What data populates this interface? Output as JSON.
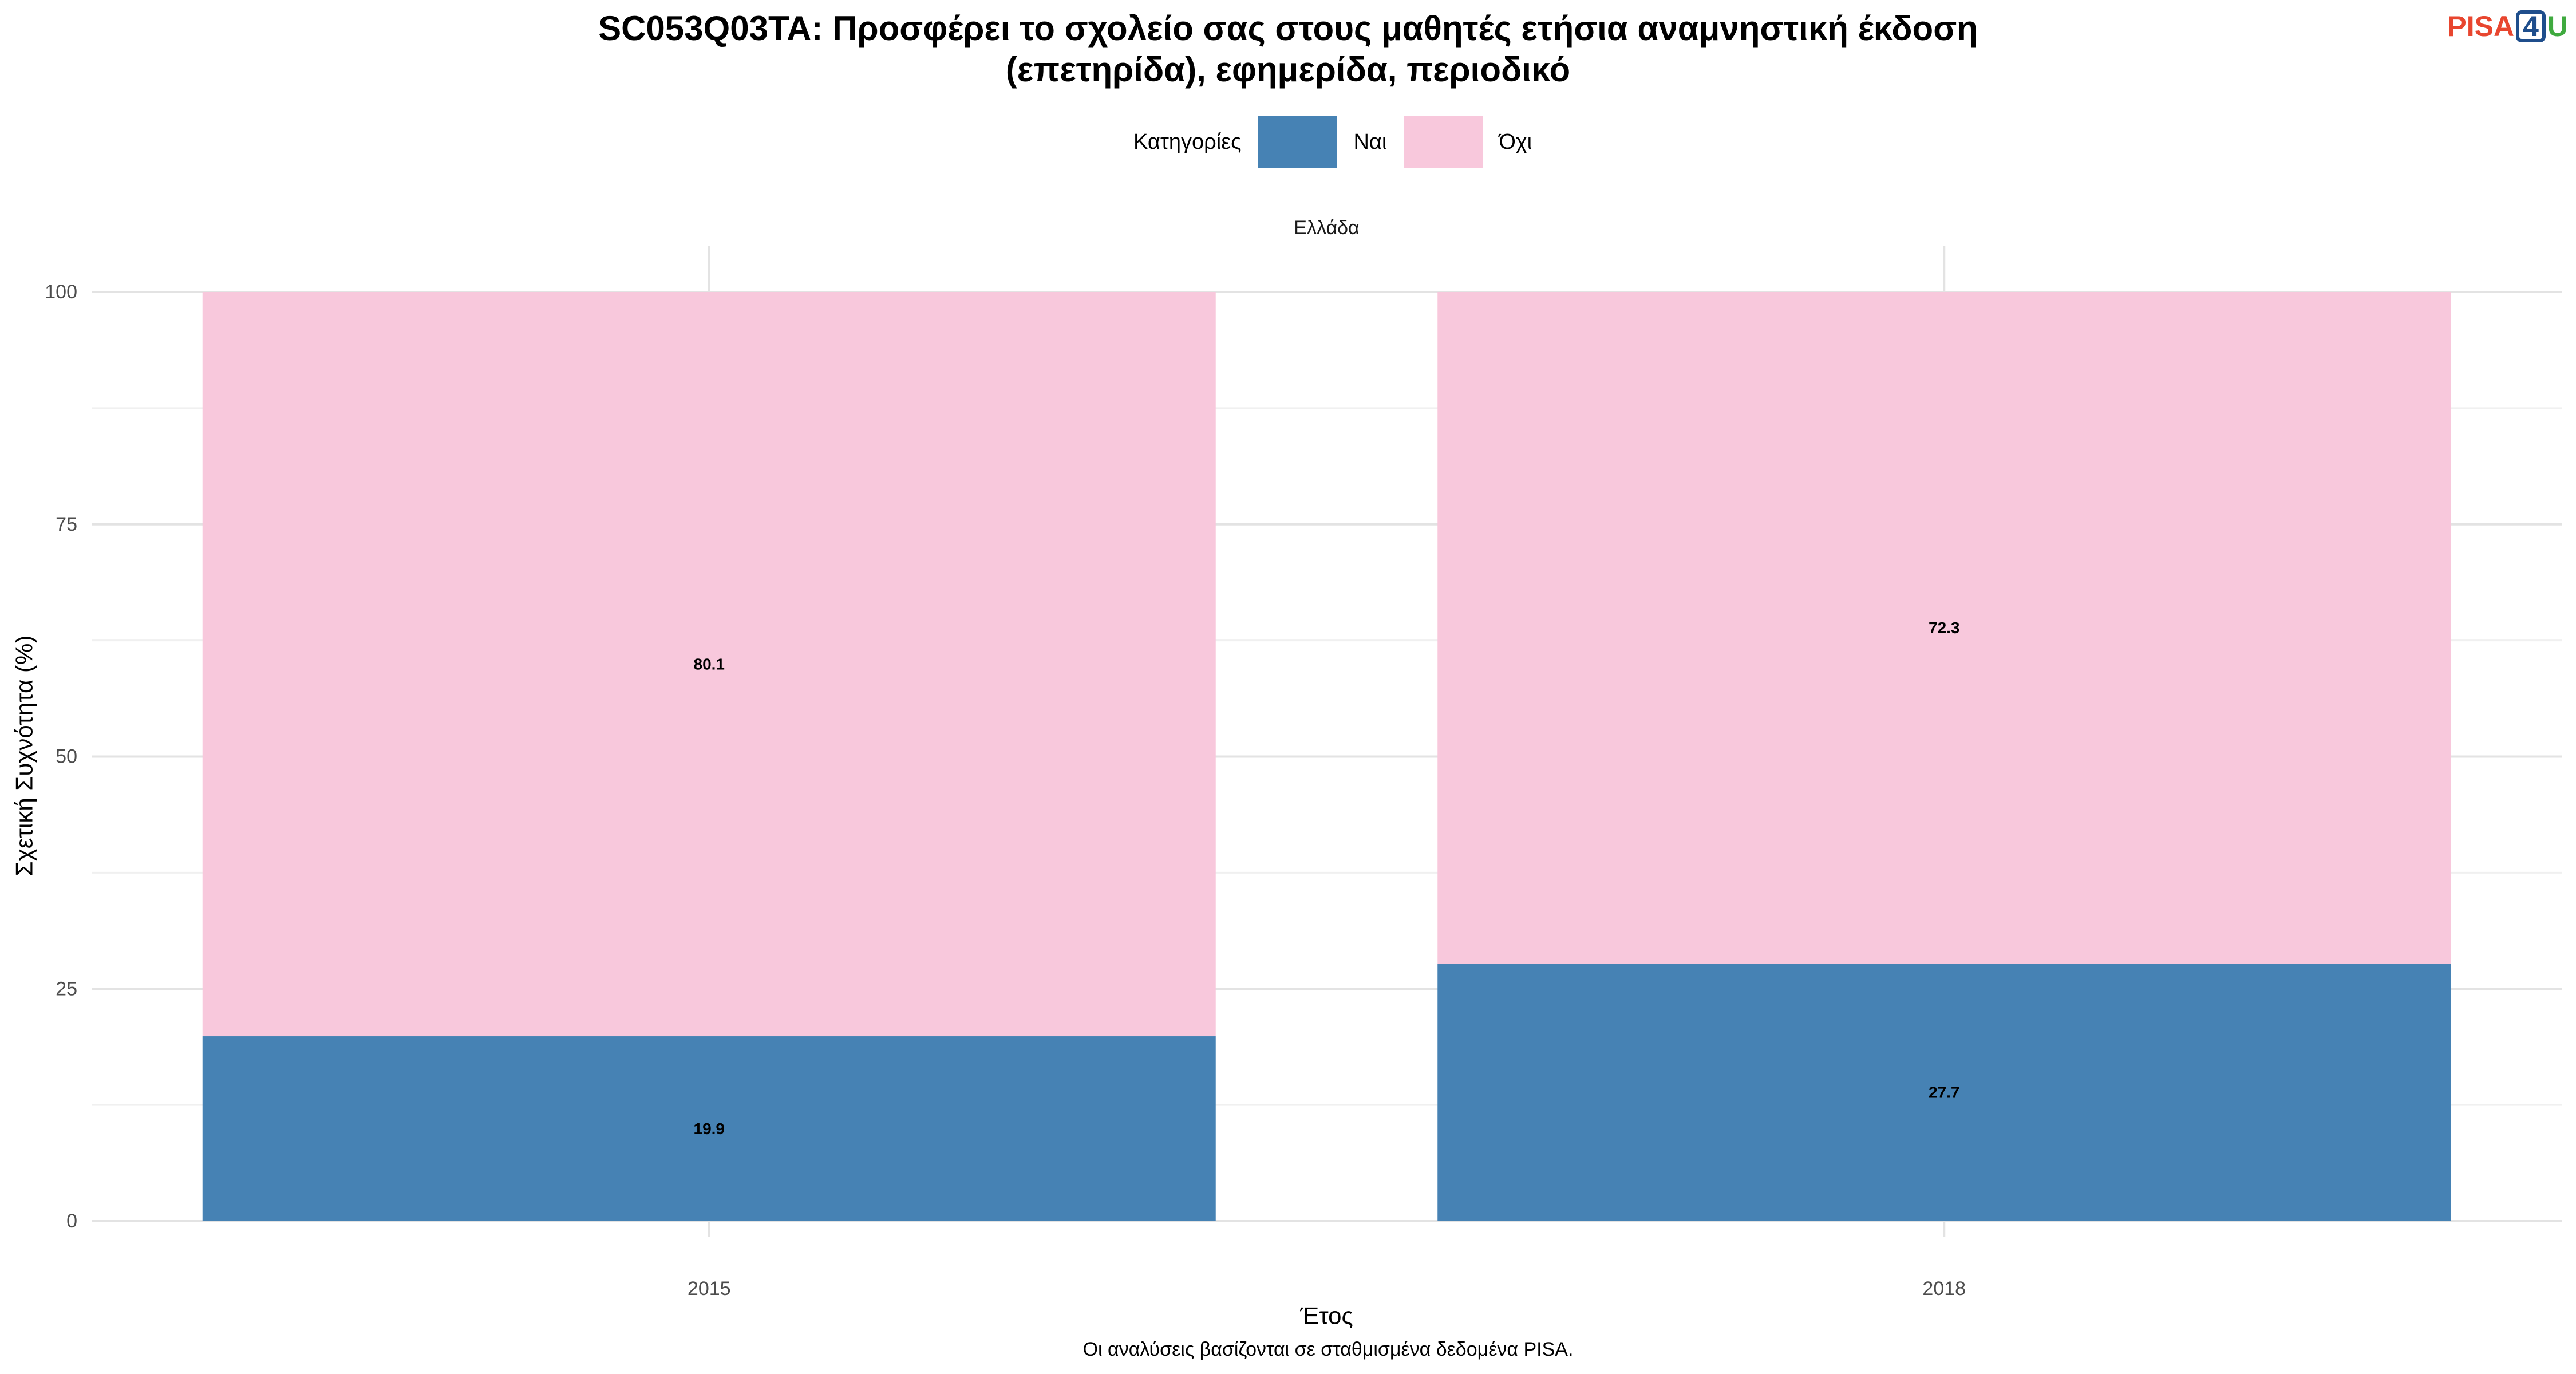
{
  "chart_data": {
    "type": "bar",
    "stacked": true,
    "title": [
      "SC053Q03TA: Προσφέρει το σχολείο σας στους μαθητές ετήσια αναμνηστική έκδοση",
      "(επετηρίδα), εφημερίδα, περιοδικό"
    ],
    "facet_label": "Ελλάδα",
    "xlabel": "Έτος",
    "ylabel": "Σχετική Συχνότητα (%)",
    "categories": [
      "2015",
      "2018"
    ],
    "ylim": [
      0,
      100
    ],
    "yticks": [
      "0",
      "25",
      "50",
      "75",
      "100"
    ],
    "legend": {
      "title": "Κατηγορίες",
      "position": "top"
    },
    "series": [
      {
        "name": "Ναι",
        "values": [
          19.9,
          27.7
        ],
        "labels": [
          "19.9",
          "27.7"
        ],
        "color": "#4682b4"
      },
      {
        "name": "Όχι",
        "values": [
          80.1,
          72.3
        ],
        "labels": [
          "80.1",
          "72.3"
        ],
        "color": "#f8c8dc"
      }
    ],
    "grid": true
  },
  "logo": {
    "part1": "PISA",
    "part2": "4",
    "part3": "U"
  },
  "caption": "Οι αναλύσεις βασίζονται σε σταθμισμένα δεδομένα PISA."
}
